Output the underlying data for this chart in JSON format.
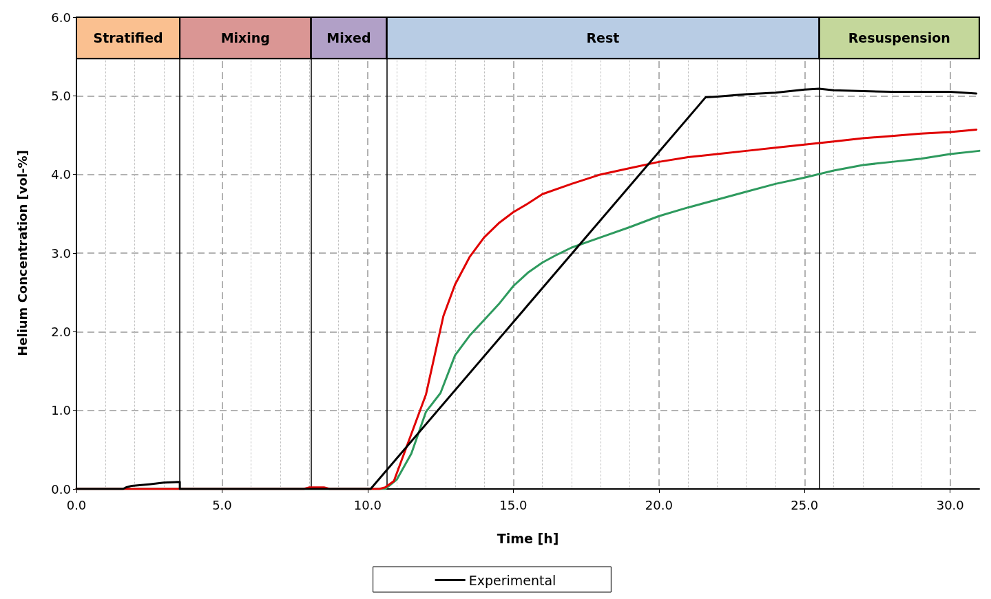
{
  "chart_data": {
    "type": "line",
    "xlabel": "Time [h]",
    "ylabel": "Helium Concentration [vol-%]",
    "xlim": [
      0,
      31
    ],
    "xticks": [
      {
        "value": 0,
        "label": "0.0"
      },
      {
        "value": 5,
        "label": "5.0"
      },
      {
        "value": 10,
        "label": "10.0"
      },
      {
        "value": 15,
        "label": "15.0"
      },
      {
        "value": 20,
        "label": "20.0"
      },
      {
        "value": 25,
        "label": "25.0"
      },
      {
        "value": 30,
        "label": "30.0"
      }
    ],
    "ylim": [
      0,
      6
    ],
    "yticks": [
      {
        "value": 0,
        "label": "0.0"
      },
      {
        "value": 1,
        "label": "1.0"
      },
      {
        "value": 2,
        "label": "2.0"
      },
      {
        "value": 3,
        "label": "3.0"
      },
      {
        "value": 4,
        "label": "4.0"
      },
      {
        "value": 5,
        "label": "5.0"
      },
      {
        "value": 6,
        "label": "6.0"
      }
    ],
    "grid": true,
    "legend": "bottom",
    "marker": "none",
    "line_style": "solid",
    "bands": [
      {
        "axis": "x",
        "from": 0,
        "to": 3.55,
        "label": "Stratified",
        "color": "#fac090"
      },
      {
        "axis": "x",
        "from": 3.55,
        "to": 8.05,
        "label": "Mixing",
        "color": "#da9694"
      },
      {
        "axis": "x",
        "from": 8.05,
        "to": 10.65,
        "label": "Mixed",
        "color": "#b1a0c7"
      },
      {
        "axis": "x",
        "from": 10.65,
        "to": 25.5,
        "label": "Rest",
        "color": "#b8cce4"
      },
      {
        "axis": "x",
        "from": 25.5,
        "to": 31,
        "label": "Resuspension",
        "color": "#c4d79b"
      }
    ],
    "series": [
      {
        "color": "#2e9a5e",
        "x": [
          0,
          10.6,
          11,
          11.5,
          12,
          12.5,
          13,
          13.5,
          14,
          14.5,
          15,
          15.5,
          16,
          16.5,
          17,
          18,
          19,
          20,
          21,
          22,
          23,
          24,
          25,
          26,
          27,
          28,
          29,
          30,
          31
        ],
        "values": [
          0,
          0,
          0.12,
          0.45,
          0.98,
          1.22,
          1.7,
          1.95,
          2.15,
          2.35,
          2.58,
          2.75,
          2.88,
          2.98,
          3.07,
          3.2,
          3.33,
          3.47,
          3.58,
          3.68,
          3.78,
          3.88,
          3.96,
          4.05,
          4.12,
          4.16,
          4.2,
          4.26,
          4.3
        ]
      },
      {
        "color": "#e00000",
        "x": [
          0,
          7.8,
          8,
          8.5,
          8.7,
          10.4,
          10.6,
          10.9,
          11.3,
          11.6,
          12,
          12.3,
          12.6,
          13,
          13.5,
          14,
          14.5,
          15,
          15.5,
          16,
          17,
          18,
          19,
          20,
          21,
          22,
          23,
          24,
          25,
          26,
          27,
          28,
          29,
          30,
          30.9
        ],
        "values": [
          0,
          0,
          0.02,
          0.02,
          0,
          0,
          0.02,
          0.1,
          0.5,
          0.8,
          1.2,
          1.7,
          2.2,
          2.6,
          2.95,
          3.2,
          3.38,
          3.52,
          3.63,
          3.75,
          3.88,
          4.0,
          4.08,
          4.16,
          4.22,
          4.26,
          4.3,
          4.34,
          4.38,
          4.42,
          4.46,
          4.49,
          4.52,
          4.54,
          4.57
        ]
      },
      {
        "name": "Experimental",
        "color": "#000000",
        "x": [
          0,
          1.6,
          1.7,
          1.9,
          2.5,
          3.0,
          3.55,
          3.55,
          10.1,
          21.6,
          22,
          23,
          24,
          25,
          25.5,
          26,
          28,
          30,
          30.9
        ],
        "values": [
          0,
          0,
          0.02,
          0.04,
          0.06,
          0.08,
          0.09,
          0,
          0,
          4.98,
          4.99,
          5.02,
          5.04,
          5.08,
          5.09,
          5.07,
          5.05,
          5.05,
          5.03
        ]
      }
    ]
  }
}
